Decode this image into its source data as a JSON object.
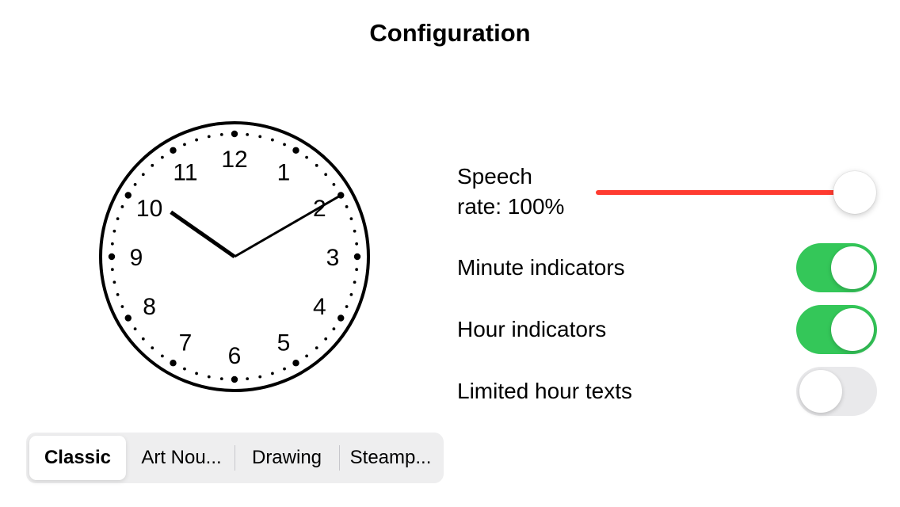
{
  "header": {
    "title": "Configuration"
  },
  "clock": {
    "numerals": [
      "12",
      "1",
      "2",
      "3",
      "4",
      "5",
      "6",
      "7",
      "8",
      "9",
      "10",
      "11"
    ],
    "time": {
      "hour": 10,
      "minute": 10
    }
  },
  "settings": {
    "speech_rate": {
      "label_line1": "Speech",
      "label_line2": "rate: 100%",
      "value": 1.0,
      "color": "#ff3b30"
    },
    "minute_indicators": {
      "label": "Minute indicators",
      "on": true
    },
    "hour_indicators": {
      "label": "Hour indicators",
      "on": true
    },
    "limited_hour_texts": {
      "label": "Limited hour texts",
      "on": false
    },
    "toggle_on_color": "#34c759"
  },
  "styles_segmented": {
    "items": [
      "Classic",
      "Art Nou...",
      "Drawing",
      "Steamp..."
    ],
    "selected": "Classic"
  }
}
